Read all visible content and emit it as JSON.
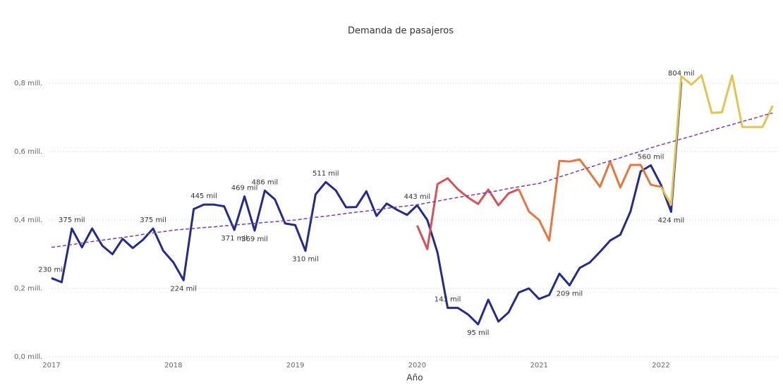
{
  "chart_data": {
    "type": "line",
    "title": "Demanda de pasajeros",
    "x_label": "Año",
    "categories": [
      "2017",
      null,
      null,
      null,
      null,
      null,
      null,
      null,
      null,
      null,
      null,
      null,
      "2018",
      null,
      null,
      null,
      null,
      null,
      null,
      null,
      null,
      null,
      null,
      null,
      "2019",
      null,
      null,
      null,
      null,
      null,
      null,
      null,
      null,
      null,
      null,
      null,
      "2020",
      null,
      null,
      null,
      null,
      null,
      null,
      null,
      null,
      null,
      null,
      null,
      "2021",
      null,
      null,
      null,
      null,
      null,
      null,
      null,
      null,
      null,
      null,
      null,
      "2022",
      null,
      null,
      null,
      null,
      null,
      null,
      null,
      null,
      null,
      null,
      null
    ],
    "ylim": [
      0,
      0.9
    ],
    "yticks": [
      {
        "value": 0,
        "label": "0,0 mill."
      },
      {
        "value": 0.2,
        "label": "0,2 mill."
      },
      {
        "value": 0.4,
        "label": "0,4 mill."
      },
      {
        "value": 0.6,
        "label": "0,6 mill."
      },
      {
        "value": 0.8,
        "label": "0,8 mill."
      }
    ],
    "grid": true,
    "series": [
      {
        "color": "#232b8c",
        "values": [
          0.23,
          0.218,
          0.375,
          0.32,
          0.375,
          0.325,
          0.3,
          0.345,
          0.318,
          0.342,
          0.375,
          0.31,
          0.276,
          0.224,
          0.432,
          0.445,
          0.445,
          0.44,
          0.371,
          0.469,
          0.369,
          0.486,
          0.46,
          0.39,
          0.385,
          0.31,
          0.475,
          0.511,
          0.486,
          0.437,
          0.438,
          0.484,
          0.412,
          0.448,
          0.43,
          0.415,
          0.443,
          0.4,
          0.305,
          0.143,
          0.143,
          0.124,
          0.095,
          0.167,
          0.103,
          0.13,
          0.188,
          0.2,
          0.169,
          0.181,
          0.243,
          0.209,
          0.26,
          0.276,
          0.307,
          0.34,
          0.357,
          0.425,
          0.542,
          0.56,
          0.503,
          0.424,
          0.804,
          null,
          null,
          null,
          null,
          null,
          null,
          null,
          null,
          null
        ],
        "value_labels": [
          "230 mil",
          null,
          "375 mil",
          null,
          null,
          null,
          null,
          null,
          null,
          null,
          "375 mil",
          null,
          null,
          "224 mil",
          null,
          "445 mil",
          null,
          null,
          "371 mil",
          "469 mil",
          "369 mil",
          "486 mil",
          null,
          null,
          null,
          "310 mil",
          null,
          "511 mil",
          null,
          null,
          null,
          null,
          null,
          null,
          null,
          null,
          "443 mil",
          null,
          null,
          "143 mil",
          null,
          null,
          "95 mil",
          null,
          null,
          null,
          null,
          null,
          null,
          null,
          null,
          "209 mil",
          null,
          null,
          null,
          null,
          null,
          null,
          null,
          "560 mil",
          null,
          "424 mil",
          "804 mil",
          null,
          null,
          null,
          null,
          null,
          null,
          null,
          null,
          null
        ]
      },
      {
        "color": "#d9505a",
        "values": [
          null,
          null,
          null,
          null,
          null,
          null,
          null,
          null,
          null,
          null,
          null,
          null,
          null,
          null,
          null,
          null,
          null,
          null,
          null,
          null,
          null,
          null,
          null,
          null,
          null,
          null,
          null,
          null,
          null,
          null,
          null,
          null,
          null,
          null,
          null,
          null,
          0.384,
          0.315,
          0.505,
          0.522,
          0.49,
          0.466,
          0.447,
          0.489,
          0.443,
          0.478,
          0.49,
          null,
          null,
          null,
          null,
          null,
          null,
          null,
          null,
          null,
          null,
          null,
          null,
          null,
          null,
          null,
          null,
          null,
          null,
          null,
          null,
          null,
          null,
          null,
          null,
          null
        ]
      },
      {
        "color": "#e8763c",
        "values": [
          null,
          null,
          null,
          null,
          null,
          null,
          null,
          null,
          null,
          null,
          null,
          null,
          null,
          null,
          null,
          null,
          null,
          null,
          null,
          null,
          null,
          null,
          null,
          null,
          null,
          null,
          null,
          null,
          null,
          null,
          null,
          null,
          null,
          null,
          null,
          null,
          null,
          null,
          null,
          null,
          null,
          null,
          null,
          null,
          null,
          null,
          0.49,
          0.425,
          0.4,
          0.34,
          0.573,
          0.571,
          0.577,
          0.538,
          0.497,
          0.571,
          0.495,
          0.561,
          0.561,
          0.503,
          0.497,
          null,
          null,
          null,
          null,
          null,
          null,
          null,
          null,
          null,
          null,
          null
        ]
      },
      {
        "color": "#e2c44e",
        "values": [
          null,
          null,
          null,
          null,
          null,
          null,
          null,
          null,
          null,
          null,
          null,
          null,
          null,
          null,
          null,
          null,
          null,
          null,
          null,
          null,
          null,
          null,
          null,
          null,
          null,
          null,
          null,
          null,
          null,
          null,
          null,
          null,
          null,
          null,
          null,
          null,
          null,
          null,
          null,
          null,
          null,
          null,
          null,
          null,
          null,
          null,
          null,
          null,
          null,
          null,
          null,
          null,
          null,
          null,
          null,
          null,
          null,
          null,
          null,
          null,
          0.497,
          0.445,
          0.82,
          0.796,
          0.823,
          0.713,
          0.715,
          0.823,
          0.672,
          0.672,
          0.672,
          0.734
        ]
      },
      {
        "color": "#7b3fa0",
        "dashed": true,
        "values": [
          0.32,
          0.324,
          0.328,
          0.333,
          0.337,
          0.341,
          0.345,
          0.349,
          0.353,
          0.358,
          0.362,
          0.366,
          0.37,
          0.373,
          0.375,
          0.378,
          0.38,
          0.383,
          0.385,
          0.388,
          0.39,
          0.393,
          0.395,
          0.398,
          0.4,
          0.404,
          0.408,
          0.411,
          0.415,
          0.419,
          0.423,
          0.426,
          0.43,
          0.434,
          0.438,
          0.441,
          0.445,
          0.45,
          0.455,
          0.461,
          0.466,
          0.471,
          0.476,
          0.481,
          0.486,
          0.492,
          0.497,
          0.502,
          0.507,
          0.516,
          0.526,
          0.535,
          0.545,
          0.554,
          0.564,
          0.573,
          0.582,
          0.592,
          0.601,
          0.611,
          0.62,
          0.628,
          0.637,
          0.645,
          0.654,
          0.662,
          0.671,
          0.679,
          0.688,
          0.696,
          0.705,
          0.713
        ]
      }
    ]
  }
}
